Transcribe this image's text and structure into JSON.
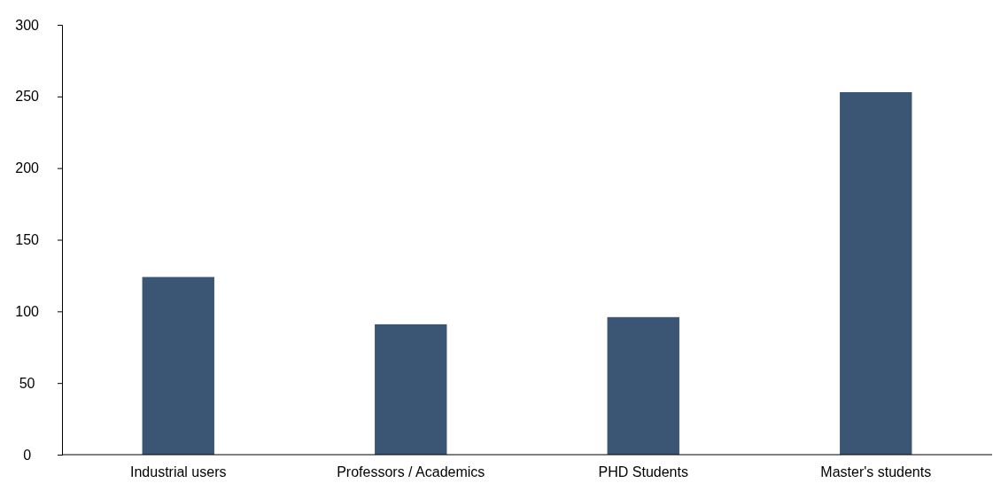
{
  "chart_data": {
    "type": "bar",
    "categories": [
      "Industrial users",
      "Professors / Academics",
      "PHD Students",
      "Master's students"
    ],
    "values": [
      124,
      91,
      96,
      253
    ],
    "color": "#3b5674",
    "ylim": [
      0,
      300
    ],
    "yticks": [
      0,
      50,
      100,
      150,
      200,
      250,
      300
    ],
    "grid": false
  }
}
